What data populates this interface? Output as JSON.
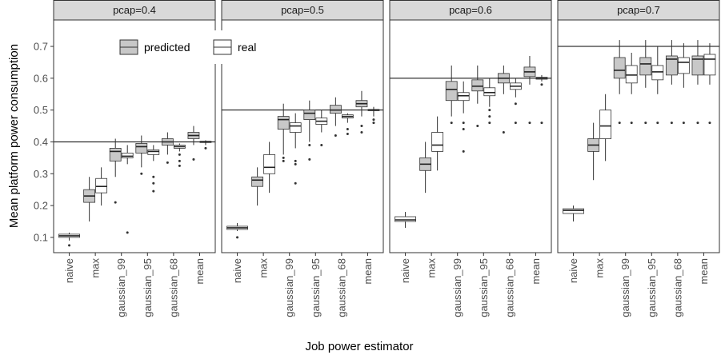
{
  "chart_data": {
    "type": "box",
    "x_label": "Job power estimator",
    "y_label": "Mean platform power consumption",
    "ylim": [
      0.052,
      0.783
    ],
    "yticks": [
      0.1,
      0.2,
      0.3,
      0.4,
      0.5,
      0.6,
      0.7
    ],
    "grid": false,
    "legend": "top-left",
    "categories": [
      "naive",
      "max",
      "gaussian_99",
      "gaussian_95",
      "gaussian_68",
      "mean"
    ],
    "series": [
      {
        "name": "predicted",
        "color": "#c8c8c8"
      },
      {
        "name": "real",
        "color": "#ffffff"
      }
    ],
    "facets": [
      {
        "title": "pcap=0.4",
        "hline": 0.4,
        "values": [
          [
            null,
            {
              "min": 0.15,
              "q1": 0.21,
              "median": 0.23,
              "q3": 0.25,
              "max": 0.29,
              "outliers": []
            },
            {
              "min": 0.29,
              "q1": 0.34,
              "median": 0.37,
              "q3": 0.38,
              "max": 0.41,
              "outliers": [
                0.21
              ]
            },
            {
              "min": 0.32,
              "q1": 0.365,
              "median": 0.385,
              "q3": 0.395,
              "max": 0.42,
              "outliers": [
                0.3
              ]
            },
            {
              "min": 0.36,
              "q1": 0.39,
              "median": 0.4,
              "q3": 0.41,
              "max": 0.43,
              "outliers": [
                0.335
              ]
            },
            {
              "min": 0.39,
              "q1": 0.41,
              "median": 0.42,
              "q3": 0.43,
              "max": 0.45,
              "outliers": [
                0.345
              ]
            }
          ],
          [
            {
              "min": 0.09,
              "q1": 0.1,
              "median": 0.105,
              "q3": 0.11,
              "max": 0.115,
              "outliers": [
                0.075
              ]
            },
            {
              "min": 0.2,
              "q1": 0.24,
              "median": 0.26,
              "q3": 0.285,
              "max": 0.32,
              "outliers": []
            },
            {
              "min": 0.33,
              "q1": 0.35,
              "median": 0.355,
              "q3": 0.365,
              "max": 0.39,
              "outliers": [
                0.115
              ]
            },
            {
              "min": 0.34,
              "q1": 0.36,
              "median": 0.37,
              "q3": 0.375,
              "max": 0.39,
              "outliers": [
                0.29,
                0.27,
                0.245
              ]
            },
            {
              "min": 0.37,
              "q1": 0.38,
              "median": 0.385,
              "q3": 0.39,
              "max": 0.395,
              "outliers": [
                0.36,
                0.34,
                0.325
              ]
            },
            {
              "min": 0.39,
              "q1": 0.398,
              "median": 0.4,
              "q3": 0.402,
              "max": 0.405,
              "outliers": [
                0.38
              ]
            }
          ]
        ]
      },
      {
        "title": "pcap=0.5",
        "hline": 0.5,
        "values": [
          [
            null,
            {
              "min": 0.2,
              "q1": 0.26,
              "median": 0.28,
              "q3": 0.29,
              "max": 0.32,
              "outliers": []
            },
            {
              "min": 0.36,
              "q1": 0.44,
              "median": 0.47,
              "q3": 0.48,
              "max": 0.52,
              "outliers": [
                0.35,
                0.34
              ]
            },
            {
              "min": 0.4,
              "q1": 0.47,
              "median": 0.49,
              "q3": 0.5,
              "max": 0.53,
              "outliers": [
                0.39,
                0.345
              ]
            },
            {
              "min": 0.45,
              "q1": 0.49,
              "median": 0.5,
              "q3": 0.515,
              "max": 0.54,
              "outliers": [
                0.42
              ]
            },
            {
              "min": 0.48,
              "q1": 0.51,
              "median": 0.52,
              "q3": 0.53,
              "max": 0.56,
              "outliers": [
                0.45,
                0.43
              ]
            }
          ],
          [
            {
              "min": 0.12,
              "q1": 0.125,
              "median": 0.13,
              "q3": 0.135,
              "max": 0.145,
              "outliers": [
                0.1
              ]
            },
            {
              "min": 0.24,
              "q1": 0.3,
              "median": 0.32,
              "q3": 0.36,
              "max": 0.4,
              "outliers": []
            },
            {
              "min": 0.38,
              "q1": 0.43,
              "median": 0.45,
              "q3": 0.46,
              "max": 0.49,
              "outliers": [
                0.34,
                0.33,
                0.27
              ]
            },
            {
              "min": 0.43,
              "q1": 0.455,
              "median": 0.465,
              "q3": 0.475,
              "max": 0.5,
              "outliers": [
                0.39
              ]
            },
            {
              "min": 0.46,
              "q1": 0.475,
              "median": 0.48,
              "q3": 0.485,
              "max": 0.49,
              "outliers": [
                0.44,
                0.425
              ]
            },
            {
              "min": 0.48,
              "q1": 0.498,
              "median": 0.5,
              "q3": 0.502,
              "max": 0.51,
              "outliers": [
                0.47,
                0.46
              ]
            }
          ]
        ]
      },
      {
        "title": "pcap=0.6",
        "hline": 0.6,
        "values": [
          [
            null,
            {
              "min": 0.24,
              "q1": 0.31,
              "median": 0.33,
              "q3": 0.35,
              "max": 0.4,
              "outliers": []
            },
            {
              "min": 0.48,
              "q1": 0.53,
              "median": 0.565,
              "q3": 0.59,
              "max": 0.64,
              "outliers": [
                0.46
              ]
            },
            {
              "min": 0.52,
              "q1": 0.56,
              "median": 0.575,
              "q3": 0.595,
              "max": 0.64,
              "outliers": [
                0.45
              ]
            },
            {
              "min": 0.55,
              "q1": 0.585,
              "median": 0.6,
              "q3": 0.615,
              "max": 0.64,
              "outliers": [
                0.43
              ]
            },
            {
              "min": 0.58,
              "q1": 0.605,
              "median": 0.62,
              "q3": 0.635,
              "max": 0.67,
              "outliers": [
                0.46
              ]
            }
          ],
          [
            {
              "min": 0.13,
              "q1": 0.15,
              "median": 0.155,
              "q3": 0.165,
              "max": 0.18,
              "outliers": []
            },
            {
              "min": 0.31,
              "q1": 0.37,
              "median": 0.39,
              "q3": 0.43,
              "max": 0.48,
              "outliers": []
            },
            {
              "min": 0.49,
              "q1": 0.53,
              "median": 0.545,
              "q3": 0.555,
              "max": 0.59,
              "outliers": [
                0.46,
                0.44,
                0.37
              ]
            },
            {
              "min": 0.51,
              "q1": 0.545,
              "median": 0.555,
              "q3": 0.57,
              "max": 0.6,
              "outliers": [
                0.5,
                0.48,
                0.46
              ]
            },
            {
              "min": 0.54,
              "q1": 0.565,
              "median": 0.575,
              "q3": 0.585,
              "max": 0.6,
              "outliers": [
                0.52,
                0.46
              ]
            },
            {
              "min": 0.59,
              "q1": 0.597,
              "median": 0.6,
              "q3": 0.603,
              "max": 0.61,
              "outliers": [
                0.58,
                0.46
              ]
            }
          ]
        ]
      },
      {
        "title": "pcap=0.7",
        "hline": 0.7,
        "values": [
          [
            null,
            {
              "min": 0.28,
              "q1": 0.37,
              "median": 0.39,
              "q3": 0.41,
              "max": 0.46,
              "outliers": []
            },
            {
              "min": 0.55,
              "q1": 0.6,
              "median": 0.625,
              "q3": 0.665,
              "max": 0.72,
              "outliers": [
                0.46
              ]
            },
            {
              "min": 0.57,
              "q1": 0.61,
              "median": 0.645,
              "q3": 0.665,
              "max": 0.72,
              "outliers": [
                0.46
              ]
            },
            {
              "min": 0.58,
              "q1": 0.61,
              "median": 0.66,
              "q3": 0.67,
              "max": 0.72,
              "outliers": [
                0.46
              ]
            },
            {
              "min": 0.58,
              "q1": 0.61,
              "median": 0.66,
              "q3": 0.67,
              "max": 0.72,
              "outliers": [
                0.46
              ]
            }
          ],
          [
            {
              "min": 0.15,
              "q1": 0.175,
              "median": 0.185,
              "q3": 0.19,
              "max": 0.2,
              "outliers": []
            },
            {
              "min": 0.34,
              "q1": 0.41,
              "median": 0.45,
              "q3": 0.5,
              "max": 0.55,
              "outliers": []
            },
            {
              "min": 0.55,
              "q1": 0.585,
              "median": 0.61,
              "q3": 0.64,
              "max": 0.68,
              "outliers": [
                0.46
              ]
            },
            {
              "min": 0.55,
              "q1": 0.595,
              "median": 0.62,
              "q3": 0.64,
              "max": 0.7,
              "outliers": [
                0.46
              ]
            },
            {
              "min": 0.57,
              "q1": 0.615,
              "median": 0.65,
              "q3": 0.665,
              "max": 0.71,
              "outliers": [
                0.46
              ]
            },
            {
              "min": 0.58,
              "q1": 0.61,
              "median": 0.66,
              "q3": 0.675,
              "max": 0.71,
              "outliers": [
                0.46
              ]
            }
          ]
        ]
      }
    ]
  }
}
